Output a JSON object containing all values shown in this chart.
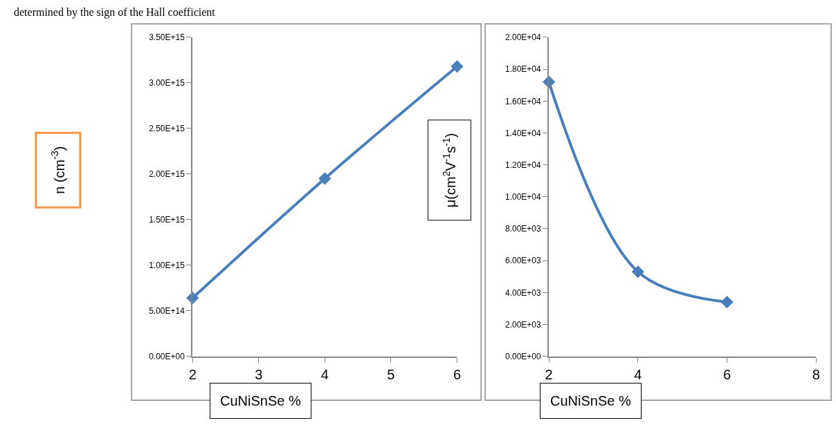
{
  "chart_data": [
    {
      "type": "line",
      "xlabel": "CuNiSnSe %",
      "ylabel": "n (cm$^{-3}$)",
      "annotations": [
        "determined by the sign of the Hall coefficient"
      ],
      "x": [
        2,
        4,
        6
      ],
      "series": [
        {
          "color": "#4a7ebb",
          "values": [
            640000000000000.0,
            1950000000000000.0,
            3180000000000000.0
          ]
        }
      ],
      "xlim": [
        2,
        6
      ],
      "xticks": [
        2,
        3,
        4,
        5,
        6
      ],
      "ylim": [
        0,
        3500000000000000.0
      ],
      "yticks": [
        {
          "value": 0,
          "label": "0.00E+00"
        },
        {
          "value": 500000000000000.0,
          "label": "5.00E+14"
        },
        {
          "value": 1000000000000000.0,
          "label": "1.00E+15"
        },
        {
          "value": 1500000000000000.0,
          "label": "1.50E+15"
        },
        {
          "value": 2000000000000000.0,
          "label": "2.00E+15"
        },
        {
          "value": 2500000000000000.0,
          "label": "2.50E+15"
        },
        {
          "value": 3000000000000000.0,
          "label": "3.00E+15"
        },
        {
          "value": 3500000000000000.0,
          "label": "3.50E+15"
        }
      ],
      "marker": "diamond",
      "line_style": "solid"
    },
    {
      "type": "line",
      "xlabel": "CuNiSnSe %",
      "ylabel": "μ(cm$^{2}$V$^{-1}$s$^{-1}$)",
      "x": [
        2,
        4,
        6
      ],
      "series": [
        {
          "color": "#4a7ebb",
          "values": [
            17200,
            5300,
            3400
          ]
        }
      ],
      "xlim": [
        2,
        8
      ],
      "xticks": [
        2,
        4,
        6,
        8
      ],
      "ylim": [
        0,
        20000
      ],
      "yticks": [
        {
          "value": 0,
          "label": "0.00E+00"
        },
        {
          "value": 2000,
          "label": "2.00E+03"
        },
        {
          "value": 4000,
          "label": "4.00E+03"
        },
        {
          "value": 6000,
          "label": "6.00E+03"
        },
        {
          "value": 8000,
          "label": "8.00E+03"
        },
        {
          "value": 10000,
          "label": "1.00E+04"
        },
        {
          "value": 12000,
          "label": "1.20E+04"
        },
        {
          "value": 14000,
          "label": "1.40E+04"
        },
        {
          "value": 16000,
          "label": "1.60E+04"
        },
        {
          "value": 18000,
          "label": "1.80E+04"
        },
        {
          "value": 20000,
          "label": "2.00E+04"
        }
      ],
      "marker": "diamond",
      "line_style": "solid"
    }
  ]
}
